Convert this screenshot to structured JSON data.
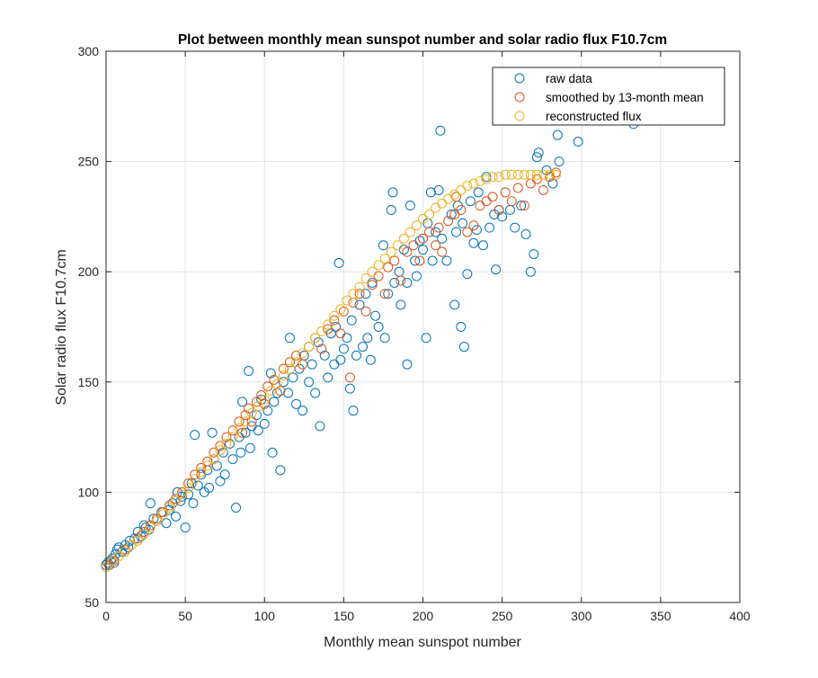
{
  "chart_data": {
    "type": "scatter",
    "title": "Plot between monthly mean sunspot number and solar radio flux F10.7cm",
    "xlabel": "Monthly mean sunspot number",
    "ylabel": "Solar radio flux F10.7cm",
    "xlim": [
      0,
      400
    ],
    "ylim": [
      50,
      300
    ],
    "xticks": [
      0,
      50,
      100,
      150,
      200,
      250,
      300,
      350,
      400
    ],
    "yticks": [
      50,
      100,
      150,
      200,
      250,
      300
    ],
    "grid": true,
    "legend_position": "top-right",
    "series": [
      {
        "name": "raw data",
        "color": "#0072BD",
        "marker": "open-circle",
        "points": [
          [
            0,
            67
          ],
          [
            1,
            68
          ],
          [
            2,
            67
          ],
          [
            3,
            69
          ],
          [
            4,
            70
          ],
          [
            5,
            68
          ],
          [
            6,
            72
          ],
          [
            7,
            74
          ],
          [
            8,
            75
          ],
          [
            10,
            73
          ],
          [
            12,
            76
          ],
          [
            14,
            75
          ],
          [
            15,
            78
          ],
          [
            18,
            79
          ],
          [
            20,
            82
          ],
          [
            22,
            80
          ],
          [
            24,
            85
          ],
          [
            25,
            84
          ],
          [
            27,
            83
          ],
          [
            28,
            95
          ],
          [
            30,
            88
          ],
          [
            32,
            87
          ],
          [
            35,
            91
          ],
          [
            38,
            86
          ],
          [
            40,
            92
          ],
          [
            42,
            95
          ],
          [
            44,
            89
          ],
          [
            45,
            100
          ],
          [
            47,
            96
          ],
          [
            48,
            98
          ],
          [
            50,
            84
          ],
          [
            52,
            99
          ],
          [
            54,
            104
          ],
          [
            55,
            95
          ],
          [
            56,
            126
          ],
          [
            58,
            103
          ],
          [
            60,
            108
          ],
          [
            62,
            100
          ],
          [
            64,
            110
          ],
          [
            65,
            102
          ],
          [
            67,
            127
          ],
          [
            68,
            115
          ],
          [
            70,
            112
          ],
          [
            72,
            105
          ],
          [
            74,
            118
          ],
          [
            75,
            108
          ],
          [
            78,
            122
          ],
          [
            80,
            115
          ],
          [
            82,
            93
          ],
          [
            84,
            125
          ],
          [
            85,
            118
          ],
          [
            86,
            141
          ],
          [
            88,
            127
          ],
          [
            90,
            155
          ],
          [
            91,
            120
          ],
          [
            92,
            130
          ],
          [
            95,
            135
          ],
          [
            96,
            128
          ],
          [
            98,
            142
          ],
          [
            100,
            131
          ],
          [
            102,
            137
          ],
          [
            104,
            154
          ],
          [
            105,
            118
          ],
          [
            106,
            141
          ],
          [
            108,
            145
          ],
          [
            110,
            110
          ],
          [
            112,
            150
          ],
          [
            115,
            145
          ],
          [
            116,
            170
          ],
          [
            118,
            152
          ],
          [
            120,
            140
          ],
          [
            122,
            156
          ],
          [
            124,
            137
          ],
          [
            125,
            162
          ],
          [
            128,
            150
          ],
          [
            130,
            158
          ],
          [
            132,
            145
          ],
          [
            134,
            168
          ],
          [
            135,
            130
          ],
          [
            138,
            162
          ],
          [
            140,
            152
          ],
          [
            142,
            172
          ],
          [
            144,
            158
          ],
          [
            145,
            175
          ],
          [
            147,
            204
          ],
          [
            148,
            160
          ],
          [
            150,
            165
          ],
          [
            152,
            170
          ],
          [
            154,
            147
          ],
          [
            155,
            178
          ],
          [
            156,
            137
          ],
          [
            158,
            162
          ],
          [
            160,
            185
          ],
          [
            162,
            166
          ],
          [
            164,
            190
          ],
          [
            165,
            170
          ],
          [
            167,
            160
          ],
          [
            168,
            195
          ],
          [
            170,
            180
          ],
          [
            172,
            175
          ],
          [
            175,
            212
          ],
          [
            176,
            170
          ],
          [
            178,
            190
          ],
          [
            180,
            228
          ],
          [
            181,
            236
          ],
          [
            182,
            195
          ],
          [
            185,
            200
          ],
          [
            186,
            185
          ],
          [
            188,
            210
          ],
          [
            190,
            158
          ],
          [
            190,
            195
          ],
          [
            192,
            230
          ],
          [
            195,
            205
          ],
          [
            196,
            198
          ],
          [
            198,
            214
          ],
          [
            200,
            210
          ],
          [
            202,
            170
          ],
          [
            203,
            222
          ],
          [
            205,
            236
          ],
          [
            206,
            205
          ],
          [
            208,
            218
          ],
          [
            210,
            237
          ],
          [
            211,
            264
          ],
          [
            212,
            215
          ],
          [
            215,
            205
          ],
          [
            218,
            226
          ],
          [
            220,
            185
          ],
          [
            221,
            218
          ],
          [
            222,
            230
          ],
          [
            224,
            175
          ],
          [
            225,
            222
          ],
          [
            226,
            166
          ],
          [
            228,
            199
          ],
          [
            230,
            232
          ],
          [
            232,
            213
          ],
          [
            234,
            219
          ],
          [
            235,
            236
          ],
          [
            238,
            212
          ],
          [
            240,
            243
          ],
          [
            242,
            220
          ],
          [
            245,
            226
          ],
          [
            246,
            201
          ],
          [
            248,
            228
          ],
          [
            250,
            225
          ],
          [
            255,
            228
          ],
          [
            258,
            220
          ],
          [
            262,
            230
          ],
          [
            265,
            217
          ],
          [
            268,
            200
          ],
          [
            270,
            208
          ],
          [
            272,
            252
          ],
          [
            273,
            254
          ],
          [
            278,
            246
          ],
          [
            282,
            240
          ],
          [
            285,
            262
          ],
          [
            286,
            250
          ],
          [
            298,
            259
          ],
          [
            333,
            267
          ]
        ]
      },
      {
        "name": "smoothed by 13-month mean",
        "color": "#D95319",
        "marker": "open-circle",
        "points": [
          [
            2,
            67
          ],
          [
            5,
            69
          ],
          [
            8,
            71
          ],
          [
            12,
            74
          ],
          [
            16,
            76
          ],
          [
            20,
            79
          ],
          [
            24,
            82
          ],
          [
            28,
            85
          ],
          [
            32,
            88
          ],
          [
            36,
            91
          ],
          [
            40,
            94
          ],
          [
            44,
            97
          ],
          [
            48,
            100
          ],
          [
            52,
            104
          ],
          [
            56,
            108
          ],
          [
            60,
            111
          ],
          [
            64,
            114
          ],
          [
            68,
            118
          ],
          [
            72,
            121
          ],
          [
            76,
            125
          ],
          [
            80,
            128
          ],
          [
            84,
            132
          ],
          [
            86,
            127
          ],
          [
            88,
            135
          ],
          [
            90,
            138
          ],
          [
            92,
            132
          ],
          [
            95,
            141
          ],
          [
            98,
            144
          ],
          [
            100,
            140
          ],
          [
            102,
            148
          ],
          [
            106,
            151
          ],
          [
            110,
            146
          ],
          [
            112,
            156
          ],
          [
            116,
            159
          ],
          [
            120,
            162
          ],
          [
            124,
            158
          ],
          [
            128,
            166
          ],
          [
            132,
            170
          ],
          [
            136,
            165
          ],
          [
            140,
            174
          ],
          [
            144,
            178
          ],
          [
            148,
            172
          ],
          [
            150,
            182
          ],
          [
            154,
            152
          ],
          [
            156,
            186
          ],
          [
            160,
            190
          ],
          [
            164,
            182
          ],
          [
            168,
            194
          ],
          [
            172,
            198
          ],
          [
            176,
            190
          ],
          [
            178,
            202
          ],
          [
            182,
            205
          ],
          [
            186,
            196
          ],
          [
            190,
            209
          ],
          [
            194,
            212
          ],
          [
            198,
            205
          ],
          [
            200,
            215
          ],
          [
            204,
            218
          ],
          [
            208,
            212
          ],
          [
            210,
            220
          ],
          [
            212,
            209
          ],
          [
            216,
            223
          ],
          [
            220,
            226
          ],
          [
            221,
            234
          ],
          [
            224,
            228
          ],
          [
            228,
            218
          ],
          [
            232,
            221
          ],
          [
            236,
            230
          ],
          [
            240,
            232
          ],
          [
            244,
            234
          ],
          [
            248,
            228
          ],
          [
            252,
            236
          ],
          [
            256,
            232
          ],
          [
            260,
            238
          ],
          [
            264,
            230
          ],
          [
            268,
            240
          ],
          [
            272,
            242
          ],
          [
            276,
            237
          ],
          [
            280,
            243
          ],
          [
            284,
            245
          ]
        ]
      },
      {
        "name": "reconstructed flux",
        "color": "#EDB120",
        "marker": "open-circle",
        "points": [
          [
            0,
            66
          ],
          [
            4,
            69
          ],
          [
            8,
            71
          ],
          [
            12,
            73
          ],
          [
            16,
            76
          ],
          [
            20,
            78
          ],
          [
            24,
            81
          ],
          [
            28,
            84
          ],
          [
            32,
            87
          ],
          [
            36,
            90
          ],
          [
            40,
            93
          ],
          [
            44,
            96
          ],
          [
            48,
            99
          ],
          [
            52,
            102
          ],
          [
            56,
            106
          ],
          [
            60,
            109
          ],
          [
            64,
            112
          ],
          [
            68,
            115
          ],
          [
            72,
            119
          ],
          [
            76,
            122
          ],
          [
            80,
            125
          ],
          [
            84,
            129
          ],
          [
            88,
            132
          ],
          [
            92,
            136
          ],
          [
            96,
            139
          ],
          [
            100,
            142
          ],
          [
            104,
            146
          ],
          [
            108,
            149
          ],
          [
            112,
            153
          ],
          [
            116,
            156
          ],
          [
            120,
            159
          ],
          [
            124,
            163
          ],
          [
            128,
            166
          ],
          [
            132,
            170
          ],
          [
            136,
            173
          ],
          [
            140,
            176
          ],
          [
            144,
            180
          ],
          [
            148,
            183
          ],
          [
            152,
            187
          ],
          [
            156,
            190
          ],
          [
            160,
            193
          ],
          [
            164,
            197
          ],
          [
            168,
            200
          ],
          [
            172,
            203
          ],
          [
            176,
            206
          ],
          [
            180,
            209
          ],
          [
            184,
            212
          ],
          [
            188,
            215
          ],
          [
            192,
            218
          ],
          [
            196,
            221
          ],
          [
            200,
            224
          ],
          [
            204,
            226
          ],
          [
            208,
            229
          ],
          [
            212,
            231
          ],
          [
            216,
            233
          ],
          [
            220,
            235
          ],
          [
            224,
            237
          ],
          [
            228,
            239
          ],
          [
            232,
            240
          ],
          [
            236,
            241
          ],
          [
            240,
            242
          ],
          [
            244,
            243
          ],
          [
            248,
            243
          ],
          [
            252,
            244
          ],
          [
            256,
            244
          ],
          [
            260,
            244
          ],
          [
            264,
            244
          ],
          [
            268,
            244
          ],
          [
            272,
            244
          ],
          [
            276,
            244
          ],
          [
            280,
            244
          ],
          [
            284,
            244
          ]
        ]
      }
    ]
  }
}
